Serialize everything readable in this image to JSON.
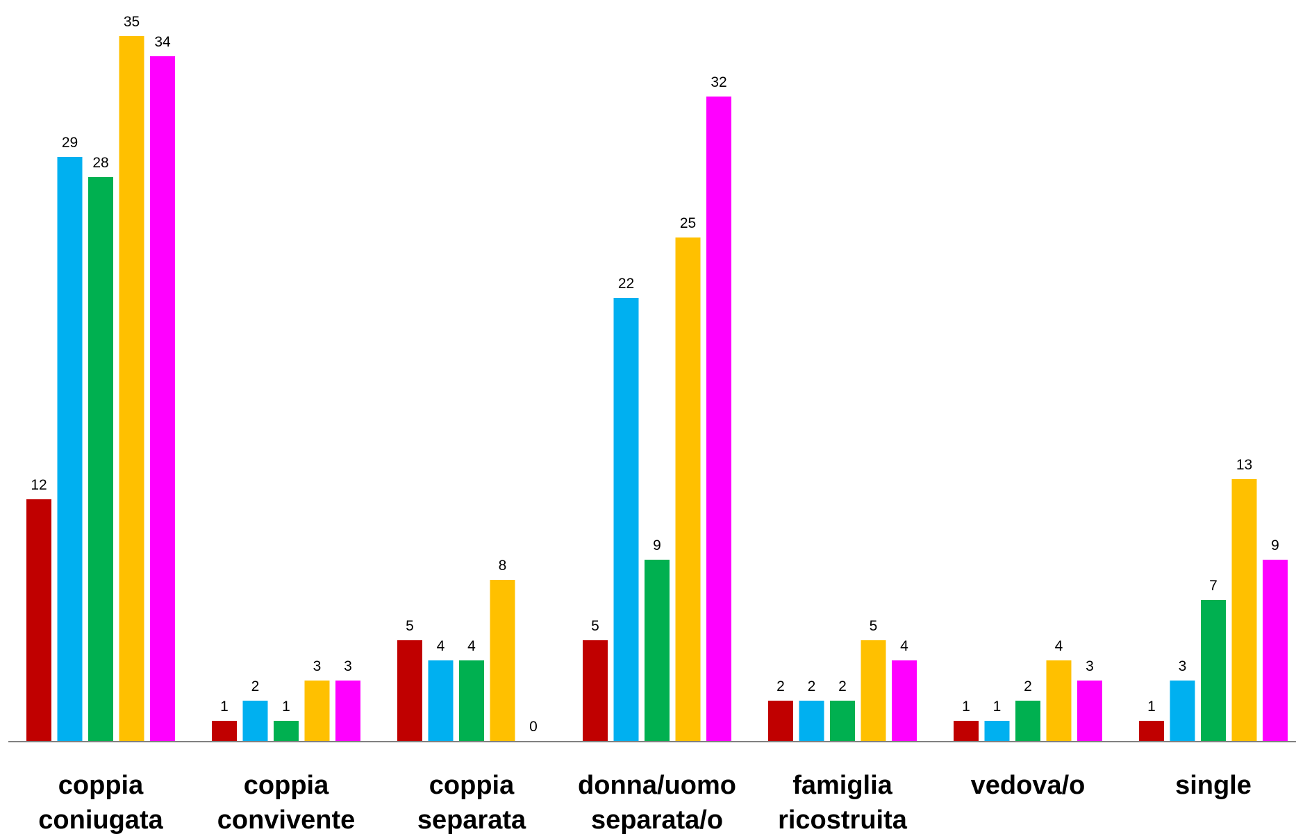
{
  "chart_data": {
    "type": "bar",
    "title": "",
    "xlabel": "",
    "ylabel": "",
    "ylim": [
      0,
      35
    ],
    "grid": false,
    "legend": "none",
    "categories": [
      [
        "coppia",
        "coniugata"
      ],
      [
        "coppia",
        "convivente"
      ],
      [
        "coppia",
        "separata"
      ],
      [
        "donna/uomo",
        "separata/o"
      ],
      [
        "famiglia",
        "ricostruita"
      ],
      [
        "vedova/o"
      ],
      [
        "single"
      ]
    ],
    "series": [
      {
        "color": "#C00000",
        "values": [
          12,
          1,
          5,
          5,
          2,
          1,
          1
        ]
      },
      {
        "color": "#00B0F0",
        "values": [
          29,
          2,
          4,
          22,
          2,
          1,
          3
        ]
      },
      {
        "color": "#00B050",
        "values": [
          28,
          1,
          4,
          9,
          2,
          2,
          7
        ]
      },
      {
        "color": "#FFC000",
        "values": [
          35,
          3,
          8,
          25,
          5,
          4,
          13
        ]
      },
      {
        "color": "#FF00FF",
        "values": [
          34,
          3,
          0,
          32,
          4,
          3,
          9
        ]
      }
    ]
  }
}
